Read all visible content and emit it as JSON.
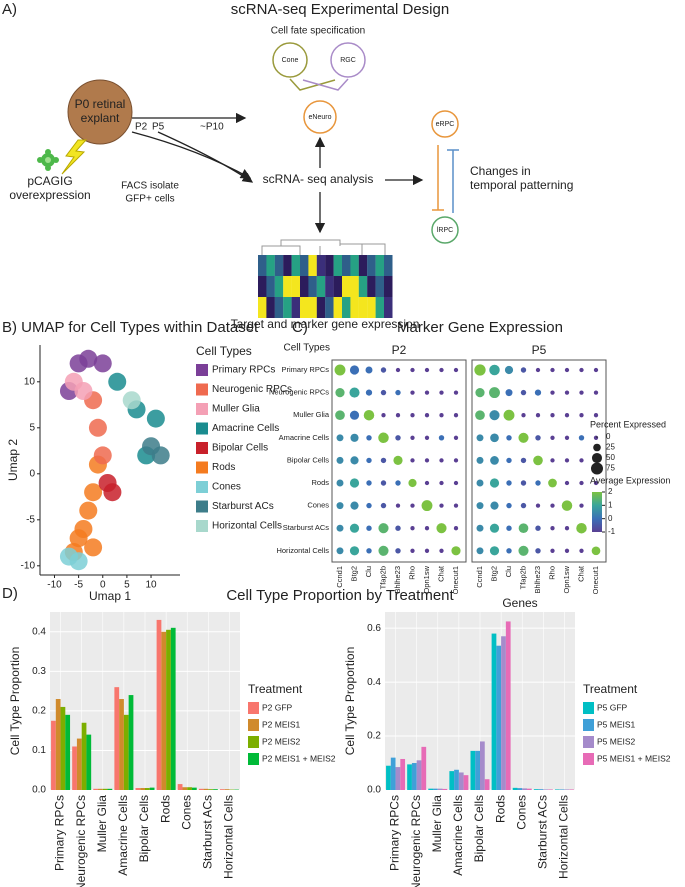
{
  "panel_a": {
    "label": "A)",
    "title": "scRNA-seq Experimental Design",
    "cell_fate": "Cell fate specification",
    "cone": "Cone",
    "rgc": "RGC",
    "eneuro": "eNeuro",
    "explant_1": "P0 retinal",
    "explant_2": "explant",
    "p2": "P2",
    "p5": "P5",
    "p10": "~P10",
    "pcagig": "pCAGIG",
    "overexpression": "overexpression",
    "facs_1": "FACS isolate",
    "facs_2": "GFP+ cells",
    "analysis": "scRNA- seq analysis",
    "erpc": "eRPC",
    "lrpc": "lRPC",
    "changes_1": "Changes in",
    "changes_2": "temporal patterning",
    "target": "Target and marker gene expression"
  },
  "panel_d": {
    "label": "D)",
    "title": "Cell Type Proportion by Treatment"
  },
  "chart_data": [
    {
      "type": "scatter",
      "title": "B) UMAP for Cell Types within Dataset",
      "xlabel": "Umap 1",
      "ylabel": "Umap 2",
      "xlim": [
        -13,
        16
      ],
      "ylim": [
        -11,
        14
      ],
      "xticks": [
        -10,
        -5,
        0,
        5,
        10
      ],
      "yticks": [
        -10,
        -5,
        0,
        5,
        10
      ],
      "legend_title": "Cell Types",
      "series": [
        {
          "name": "Rods",
          "color": "#f47b20",
          "x": [
            -1,
            -2,
            -3,
            -4,
            -5,
            -6,
            -2
          ],
          "y": [
            1,
            -2,
            -4,
            -6,
            -7,
            -8.5,
            -8
          ]
        },
        {
          "name": "Primary RPCs",
          "color": "#7b3f98",
          "x": [
            -5,
            -3,
            0,
            -7
          ],
          "y": [
            12,
            12.5,
            12,
            9
          ]
        },
        {
          "name": "Neurogenic RPCs",
          "color": "#ef6a4f",
          "x": [
            -2,
            -1,
            0
          ],
          "y": [
            8,
            5,
            2
          ]
        },
        {
          "name": "Muller Glia",
          "color": "#f4a0b5",
          "x": [
            -6,
            -4
          ],
          "y": [
            10,
            9
          ]
        },
        {
          "name": "Amacrine Cells",
          "color": "#1a8c8f",
          "x": [
            3,
            7,
            11,
            9
          ],
          "y": [
            10,
            7,
            6,
            2
          ]
        },
        {
          "name": "Bipolar Cells",
          "color": "#c8202a",
          "x": [
            1,
            2
          ],
          "y": [
            -1,
            -2
          ]
        },
        {
          "name": "Cones",
          "color": "#7dcfd6",
          "x": [
            -7,
            -5
          ],
          "y": [
            -9,
            -9.5
          ]
        },
        {
          "name": "Starburst ACs",
          "color": "#3d7d8a",
          "x": [
            10,
            12
          ],
          "y": [
            3,
            2
          ]
        },
        {
          "name": "Horizontal Cells",
          "color": "#a8d8cc",
          "x": [
            6
          ],
          "y": [
            8
          ]
        }
      ]
    },
    {
      "type": "dot",
      "panel_label": "C)",
      "title": "Marker Gene Expression",
      "row_title": "Cell Types",
      "xlabel": "Genes",
      "categories": [
        "Primary RPCs",
        "Neurogenic RPCs",
        "Muller Glia",
        "Amacrine Cells",
        "Bipolar Cells",
        "Rods",
        "Cones",
        "Starburst ACs",
        "Horizontal Cells"
      ],
      "genes": [
        "Ccnd1",
        "Btg2",
        "Clu",
        "Tfap2b",
        "Bhlhe23",
        "Rho",
        "Opn1sw",
        "Chat",
        "Onecut1"
      ],
      "panels": [
        {
          "name": "P2",
          "size": [
            [
              60,
              40,
              20,
              10,
              5,
              5,
              5,
              5,
              5
            ],
            [
              40,
              50,
              15,
              10,
              10,
              5,
              5,
              5,
              5
            ],
            [
              45,
              40,
              55,
              5,
              5,
              5,
              5,
              5,
              5
            ],
            [
              20,
              30,
              10,
              55,
              10,
              5,
              5,
              10,
              5
            ],
            [
              20,
              30,
              10,
              10,
              40,
              5,
              5,
              5,
              5
            ],
            [
              20,
              40,
              10,
              10,
              10,
              30,
              5,
              5,
              5
            ],
            [
              20,
              30,
              10,
              10,
              5,
              5,
              60,
              5,
              5
            ],
            [
              20,
              40,
              10,
              50,
              10,
              5,
              5,
              50,
              5
            ],
            [
              20,
              40,
              10,
              50,
              10,
              5,
              5,
              5,
              40
            ]
          ],
          "color": [
            [
              2,
              0,
              0,
              -0.5,
              -1,
              -1,
              -1,
              -1,
              -1
            ],
            [
              1.5,
              1,
              0,
              -0.5,
              0,
              -1,
              -1,
              -1,
              -1
            ],
            [
              1.5,
              0,
              2,
              -1,
              -1,
              -1,
              -1,
              -1,
              -1
            ],
            [
              0.5,
              0.5,
              0,
              2,
              -0.5,
              -1,
              -1,
              0,
              -1
            ],
            [
              0.5,
              0.5,
              0,
              -0.5,
              2,
              -1,
              -1,
              -1,
              -1
            ],
            [
              0.5,
              1,
              0,
              -0.5,
              0,
              2,
              -1,
              -1,
              -1
            ],
            [
              0.5,
              0.5,
              0,
              -0.5,
              -1,
              -1,
              2,
              -1,
              -1
            ],
            [
              0.5,
              1,
              0,
              1.5,
              -0.5,
              -1,
              -1,
              2,
              -1
            ],
            [
              0.5,
              1,
              0,
              1.5,
              -0.5,
              -1,
              -1,
              -1,
              2
            ]
          ]
        },
        {
          "name": "P5",
          "size": [
            [
              65,
              55,
              30,
              10,
              5,
              5,
              5,
              5,
              5
            ],
            [
              40,
              60,
              20,
              10,
              15,
              5,
              5,
              5,
              5
            ],
            [
              45,
              50,
              60,
              5,
              5,
              5,
              5,
              5,
              5
            ],
            [
              20,
              35,
              10,
              50,
              10,
              5,
              5,
              10,
              5
            ],
            [
              20,
              35,
              10,
              10,
              45,
              5,
              5,
              5,
              5
            ],
            [
              20,
              40,
              10,
              10,
              10,
              35,
              5,
              5,
              5
            ],
            [
              20,
              30,
              10,
              10,
              5,
              5,
              55,
              5,
              5
            ],
            [
              20,
              40,
              10,
              45,
              10,
              5,
              5,
              55,
              5
            ],
            [
              20,
              40,
              10,
              50,
              10,
              5,
              5,
              5,
              35
            ]
          ],
          "color": [
            [
              2,
              1,
              0.5,
              -0.5,
              -1,
              -1,
              -1,
              -1,
              -1
            ],
            [
              1.5,
              1.5,
              0,
              -0.5,
              0,
              -1,
              -1,
              -1,
              -1
            ],
            [
              1.5,
              0.5,
              2,
              -1,
              -1,
              -1,
              -1,
              -1,
              -1
            ],
            [
              0.5,
              0.5,
              0,
              2,
              -0.5,
              -1,
              -1,
              0,
              -1
            ],
            [
              0.5,
              0.5,
              0,
              -0.5,
              2,
              -1,
              -1,
              -1,
              -1
            ],
            [
              0.5,
              1,
              0,
              -0.5,
              0,
              2,
              -1,
              -1,
              -1
            ],
            [
              0.5,
              0.5,
              0,
              -0.5,
              -1,
              -1,
              2,
              -1,
              -1
            ],
            [
              0.5,
              1,
              0,
              1.5,
              -0.5,
              -1,
              -1,
              2,
              -1
            ],
            [
              0.5,
              1,
              0,
              1.5,
              -0.5,
              -1,
              -1,
              -1,
              2
            ]
          ]
        }
      ],
      "size_legend": {
        "title": "Percent Expressed",
        "values": [
          0,
          25,
          50,
          75
        ]
      },
      "color_legend": {
        "title": "Average Expression",
        "ticks": [
          2,
          1,
          0,
          -1
        ],
        "colors": [
          "#7cc242",
          "#3aa59b",
          "#3b6fb6",
          "#5a3f93"
        ]
      }
    },
    {
      "type": "bar",
      "ylabel": "Cell Type Proportion",
      "legend_title": "Treatment",
      "grid": true,
      "categories": [
        "Primary RPCs",
        "Neurogenic RPCs",
        "Muller Glia",
        "Amacrine Cells",
        "Bipolar Cells",
        "Rods",
        "Cones",
        "Starburst ACs",
        "Horizontal Cells"
      ],
      "ylim": [
        0,
        0.45
      ],
      "yticks": [
        {
          "value": 0,
          "label": "0.0"
        },
        0.1,
        0.2,
        0.3,
        0.4
      ],
      "series": [
        {
          "name": "P2 GFP",
          "color": "#f8766d",
          "values": [
            0.175,
            0.11,
            0.003,
            0.26,
            0.005,
            0.43,
            0.015,
            0.003,
            0.002
          ]
        },
        {
          "name": "P2 MEIS1",
          "color": "#d08a2c",
          "values": [
            0.23,
            0.13,
            0.003,
            0.23,
            0.005,
            0.4,
            0.007,
            0.003,
            0.002
          ]
        },
        {
          "name": "P2 MEIS2",
          "color": "#7cae00",
          "values": [
            0.21,
            0.17,
            0.003,
            0.19,
            0.005,
            0.405,
            0.007,
            0.002,
            0.001
          ]
        },
        {
          "name": "P2 MEIS1 + MEIS2",
          "color": "#00ba38",
          "values": [
            0.19,
            0.14,
            0.003,
            0.24,
            0.006,
            0.41,
            0.006,
            0.002,
            0.001
          ]
        }
      ]
    },
    {
      "type": "bar",
      "ylabel": "Cell Type Proportion",
      "legend_title": "Treatment",
      "grid": true,
      "categories": [
        "Primary RPCs",
        "Neurogenic RPCs",
        "Muller Glia",
        "Amacrine Cells",
        "Bipolar Cells",
        "Rods",
        "Cones",
        "Starburst ACs",
        "Horizontal Cells"
      ],
      "ylim": [
        0,
        0.66
      ],
      "yticks": [
        {
          "value": 0,
          "label": "0.0"
        },
        0.2,
        0.4,
        0.6
      ],
      "series": [
        {
          "name": "P5 GFP",
          "color": "#00bfc4",
          "values": [
            0.09,
            0.095,
            0.005,
            0.07,
            0.145,
            0.58,
            0.008,
            0.003,
            0.002
          ]
        },
        {
          "name": "P5 MEIS1",
          "color": "#3fa0d8",
          "values": [
            0.12,
            0.1,
            0.005,
            0.075,
            0.145,
            0.535,
            0.007,
            0.003,
            0.002
          ]
        },
        {
          "name": "P5 MEIS2",
          "color": "#a58bcb",
          "values": [
            0.085,
            0.11,
            0.005,
            0.065,
            0.18,
            0.57,
            0.006,
            0.002,
            0.002
          ]
        },
        {
          "name": "P5 MEIS1 + MEIS2",
          "color": "#e76bb6",
          "values": [
            0.115,
            0.16,
            0.004,
            0.055,
            0.04,
            0.625,
            0.005,
            0.002,
            0.002
          ]
        }
      ]
    }
  ]
}
